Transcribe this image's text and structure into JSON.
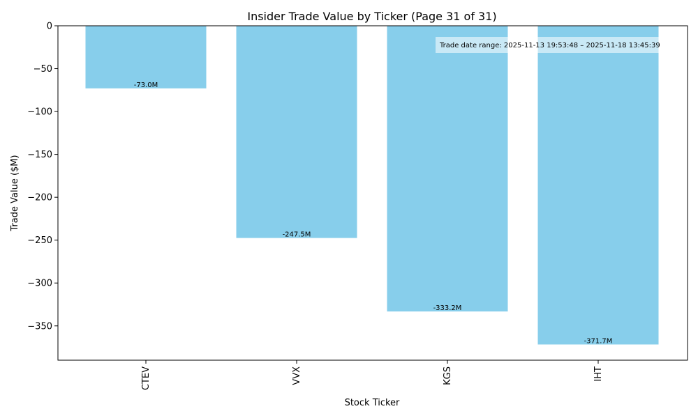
{
  "chart_data": {
    "type": "bar",
    "title": "Insider Trade Value by Ticker (Page 31 of 31)",
    "xlabel": "Stock Ticker",
    "ylabel": "Trade Value ($M)",
    "categories": [
      "CTEV",
      "VVX",
      "KGS",
      "IHT"
    ],
    "values": [
      -73.0,
      -247.5,
      -333.2,
      -371.7
    ],
    "data_labels": [
      "-73.0M",
      "-247.5M",
      "-333.2M",
      "-371.7M"
    ],
    "ylim": [
      -390,
      0
    ],
    "yticks": [
      0,
      -50,
      -100,
      -150,
      -200,
      -250,
      -300,
      -350
    ],
    "ytick_labels": [
      "0",
      "−50",
      "−100",
      "−150",
      "−200",
      "−250",
      "−300",
      "−350"
    ],
    "bar_color": "#87ceeb",
    "grid": false,
    "annotation": "Trade date range: 2025-11-13 19:53:48 – 2025-11-18 13:45:39"
  }
}
